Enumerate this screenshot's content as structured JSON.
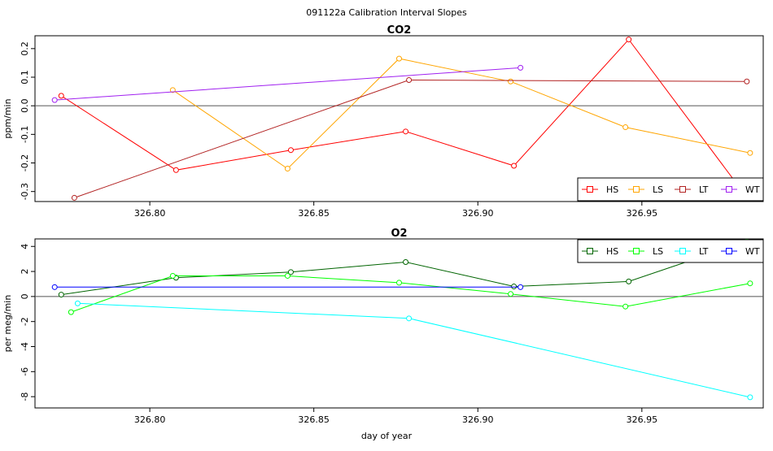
{
  "figure": {
    "title": "091122a   Calibration Interval Slopes",
    "xlabel": "day of year"
  },
  "chart_data": [
    {
      "type": "line",
      "title": "CO2",
      "xlabel": "",
      "ylabel": "ppm/min",
      "xlim": [
        326.765,
        326.987
      ],
      "ylim": [
        -0.335,
        0.245
      ],
      "x_ticks": [
        326.8,
        326.85,
        326.9,
        326.95
      ],
      "x_tick_labels": [
        "326.80",
        "326.85",
        "326.90",
        "326.95"
      ],
      "y_ticks": [
        -0.3,
        -0.2,
        -0.1,
        0.0,
        0.1,
        0.2
      ],
      "y_tick_labels": [
        "-0.3",
        "-0.2",
        "-0.1",
        "0.0",
        "0.1",
        "0.2"
      ],
      "hline": 0,
      "legend_position": "bottom-right",
      "series": [
        {
          "name": "HS",
          "color": "#ff0000",
          "x": [
            326.773,
            326.808,
            326.843,
            326.878,
            326.911,
            326.946,
            326.982
          ],
          "y": [
            0.035,
            -0.225,
            -0.155,
            -0.09,
            -0.21,
            0.232,
            -0.32
          ]
        },
        {
          "name": "LS",
          "color": "#ffa500",
          "x": [
            326.807,
            326.842,
            326.876,
            326.91,
            326.945,
            326.983
          ],
          "y": [
            0.055,
            -0.22,
            0.165,
            0.085,
            -0.075,
            -0.165
          ]
        },
        {
          "name": "LT",
          "color": "#b22222",
          "x": [
            326.777,
            326.879,
            326.982
          ],
          "y": [
            -0.322,
            0.09,
            0.085
          ]
        },
        {
          "name": "WT",
          "color": "#a020f0",
          "x": [
            326.771,
            326.913
          ],
          "y": [
            0.02,
            0.133
          ]
        }
      ]
    },
    {
      "type": "line",
      "title": "O2",
      "xlabel": "day of year",
      "ylabel": "per meg/min",
      "xlim": [
        326.765,
        326.987
      ],
      "ylim": [
        -8.9,
        4.6
      ],
      "x_ticks": [
        326.8,
        326.85,
        326.9,
        326.95
      ],
      "x_tick_labels": [
        "326.80",
        "326.85",
        "326.90",
        "326.95"
      ],
      "y_ticks": [
        -8,
        -6,
        -4,
        -2,
        0,
        2,
        4
      ],
      "y_tick_labels": [
        "-8",
        "-6",
        "-4",
        "-2",
        "0",
        "2",
        "4"
      ],
      "hline": 0,
      "legend_position": "top-right",
      "series": [
        {
          "name": "HS",
          "color": "#006400",
          "x": [
            326.773,
            326.808,
            326.843,
            326.878,
            326.911,
            326.946,
            326.982
          ],
          "y": [
            0.15,
            1.5,
            1.95,
            2.75,
            0.8,
            1.2,
            4.4
          ]
        },
        {
          "name": "LS",
          "color": "#00ff00",
          "x": [
            326.776,
            326.807,
            326.842,
            326.876,
            326.91,
            326.945,
            326.983
          ],
          "y": [
            -1.25,
            1.65,
            1.65,
            1.1,
            0.2,
            -0.8,
            1.05
          ]
        },
        {
          "name": "LT",
          "color": "#00ffff",
          "x": [
            326.778,
            326.879,
            326.983
          ],
          "y": [
            -0.55,
            -1.75,
            -8.05
          ]
        },
        {
          "name": "WT",
          "color": "#0000ff",
          "x": [
            326.771,
            326.913
          ],
          "y": [
            0.75,
            0.75
          ]
        }
      ]
    }
  ]
}
